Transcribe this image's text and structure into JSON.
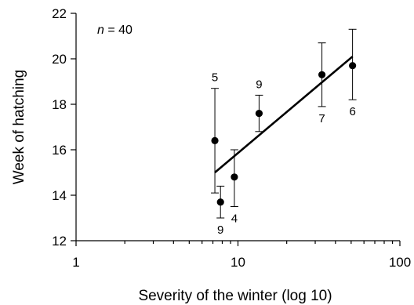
{
  "chart_data": {
    "type": "scatter",
    "xlabel": "Severity of the winter (log 10)",
    "ylabel": "Week of hatching",
    "x_scale": "log",
    "xlim": [
      1,
      100
    ],
    "ylim": [
      12,
      22
    ],
    "x_ticks": [
      1,
      10,
      100
    ],
    "x_tick_labels": [
      "1",
      "10",
      "100"
    ],
    "y_ticks": [
      12,
      14,
      16,
      18,
      20,
      22
    ],
    "y_tick_labels": [
      "12",
      "14",
      "16",
      "18",
      "20",
      "22"
    ],
    "annotation": {
      "n_italic": "n",
      "n_rest": " = 40"
    },
    "points": [
      {
        "x": 7.2,
        "y": 16.4,
        "err_low": 14.1,
        "err_high": 18.7,
        "label": "5",
        "label_pos": "above"
      },
      {
        "x": 7.8,
        "y": 13.7,
        "err_low": 13.0,
        "err_high": 14.4,
        "label": "9",
        "label_pos": "below"
      },
      {
        "x": 9.5,
        "y": 14.8,
        "err_low": 13.5,
        "err_high": 16.0,
        "label": "4",
        "label_pos": "below"
      },
      {
        "x": 13.5,
        "y": 17.6,
        "err_low": 16.8,
        "err_high": 18.4,
        "label": "9",
        "label_pos": "above"
      },
      {
        "x": 33,
        "y": 19.3,
        "err_low": 17.9,
        "err_high": 20.7,
        "label": "7",
        "label_pos": "below"
      },
      {
        "x": 51,
        "y": 19.7,
        "err_low": 18.2,
        "err_high": 21.3,
        "label": "6",
        "label_pos": "below"
      }
    ],
    "fit_line": {
      "x": [
        7.2,
        51
      ],
      "y": [
        15.0,
        20.1
      ]
    },
    "grid": false,
    "legend": "none"
  }
}
